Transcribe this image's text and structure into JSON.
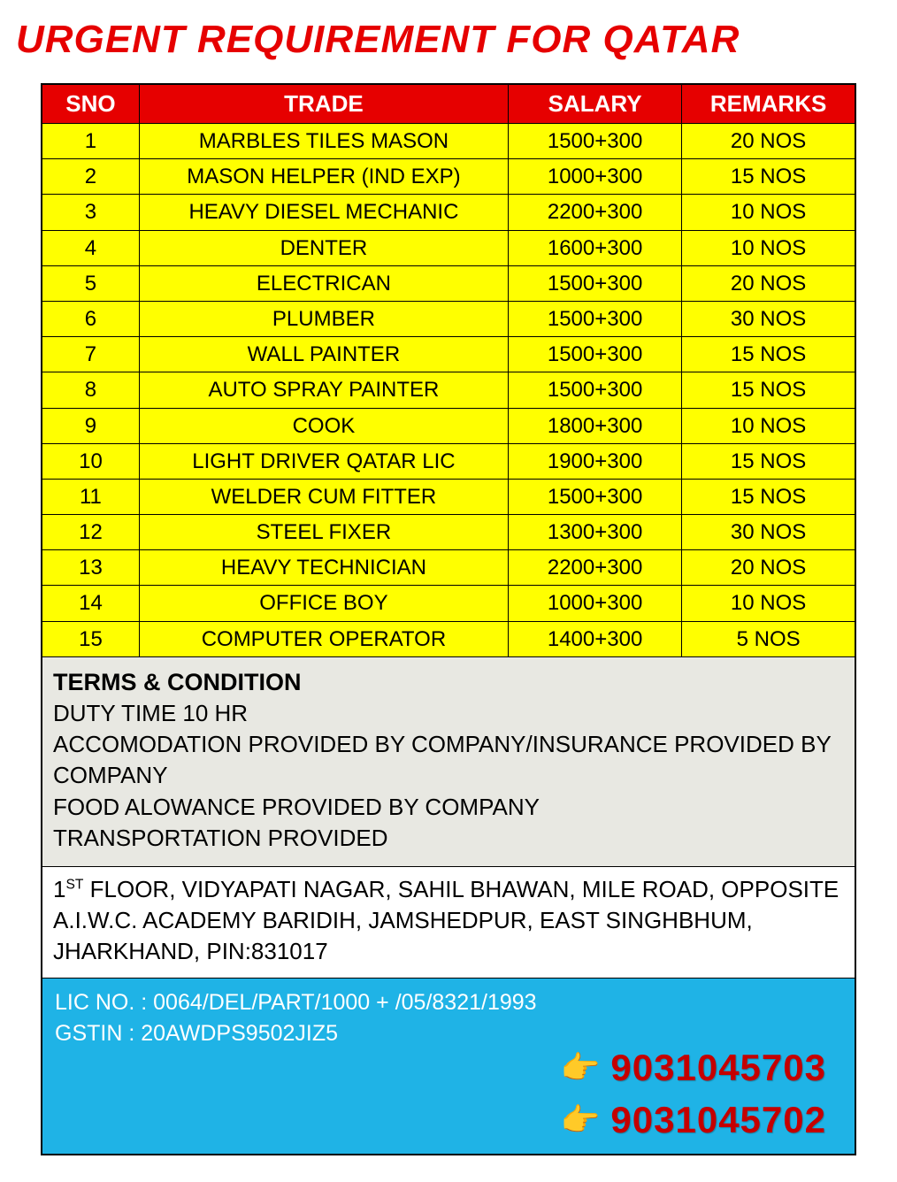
{
  "title": "URGENT REQUIREMENT FOR QATAR",
  "columns": [
    "SNO",
    "TRADE",
    "SALARY",
    "REMARKS"
  ],
  "rows": [
    {
      "sno": "1",
      "trade": "MARBLES TILES MASON",
      "salary": "1500+300",
      "remarks": "20 NOS"
    },
    {
      "sno": "2",
      "trade": "MASON HELPER (IND EXP)",
      "salary": "1000+300",
      "remarks": "15 NOS"
    },
    {
      "sno": "3",
      "trade": "HEAVY DIESEL MECHANIC",
      "salary": "2200+300",
      "remarks": "10 NOS"
    },
    {
      "sno": "4",
      "trade": "DENTER",
      "salary": "1600+300",
      "remarks": "10 NOS"
    },
    {
      "sno": "5",
      "trade": "ELECTRICAN",
      "salary": "1500+300",
      "remarks": "20 NOS"
    },
    {
      "sno": "6",
      "trade": "PLUMBER",
      "salary": "1500+300",
      "remarks": "30 NOS"
    },
    {
      "sno": "7",
      "trade": "WALL PAINTER",
      "salary": "1500+300",
      "remarks": "15 NOS"
    },
    {
      "sno": "8",
      "trade": "AUTO SPRAY PAINTER",
      "salary": "1500+300",
      "remarks": "15 NOS"
    },
    {
      "sno": "9",
      "trade": "COOK",
      "salary": "1800+300",
      "remarks": "10 NOS"
    },
    {
      "sno": "10",
      "trade": "LIGHT DRIVER QATAR LIC",
      "salary": "1900+300",
      "remarks": "15 NOS"
    },
    {
      "sno": "11",
      "trade": "WELDER CUM FITTER",
      "salary": "1500+300",
      "remarks": "15 NOS"
    },
    {
      "sno": "12",
      "trade": "STEEL FIXER",
      "salary": "1300+300",
      "remarks": "30 NOS"
    },
    {
      "sno": "13",
      "trade": "HEAVY TECHNICIAN",
      "salary": "2200+300",
      "remarks": "20 NOS"
    },
    {
      "sno": "14",
      "trade": "OFFICE BOY",
      "salary": "1000+300",
      "remarks": "10 NOS"
    },
    {
      "sno": "15",
      "trade": "COMPUTER OPERATOR",
      "salary": "1400+300",
      "remarks": "5 NOS"
    }
  ],
  "terms": {
    "heading": "TERMS & CONDITION",
    "lines": [
      "DUTY TIME 10 HR",
      "ACCOMODATION PROVIDED BY COMPANY/INSURANCE PROVIDED BY COMPANY",
      "FOOD ALOWANCE PROVIDED BY COMPANY",
      "TRANSPORTATION PROVIDED"
    ]
  },
  "address": {
    "prefix": "1",
    "sup": "ST",
    "rest": " FLOOR, VIDYAPATI NAGAR, SAHIL BHAWAN, MILE ROAD, OPPOSITE A.I.W.C. ACADEMY BARIDIH, JAMSHEDPUR, EAST SINGHBHUM, JHARKHAND, PIN:831017"
  },
  "contact": {
    "lic": "LIC NO. : 0064/DEL/PART/1000 + /05/8321/1993",
    "gstin": "GSTIN : 20AWDPS9502JIZ5",
    "phones": [
      "9031045703",
      "9031045702"
    ]
  },
  "colors": {
    "title": "#e60000",
    "header_bg": "#e60000",
    "header_text": "#ffffff",
    "row_bg": "#ffff00",
    "terms_bg": "#e8e8e2",
    "address_bg": "#ffffff",
    "contact_bg": "#1fb3e6",
    "contact_text": "#ffffff",
    "phone_color": "#c40000",
    "border": "#000000"
  }
}
